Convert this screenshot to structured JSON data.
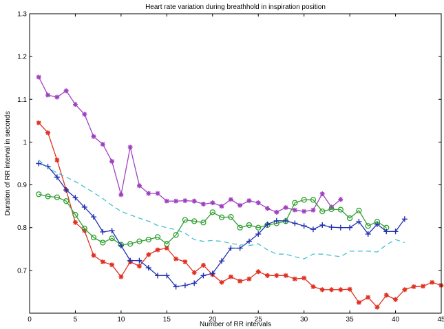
{
  "chart_data": {
    "type": "line",
    "title": "Heart rate variation during breathhold in inspiration position",
    "xlabel": "Number of RR intervals",
    "ylabel": "Duration of RR interval in seconds",
    "xlim": [
      0,
      45
    ],
    "ylim": [
      0.6,
      1.3
    ],
    "xticks": [
      0,
      5,
      10,
      15,
      20,
      25,
      30,
      35,
      40,
      45
    ],
    "yticks": [
      0.7,
      0.8,
      0.9,
      1.0,
      1.1,
      1.2,
      1.3
    ],
    "xtick_labels": [
      "0",
      "5",
      "10",
      "15",
      "20",
      "25",
      "30",
      "35",
      "40",
      "45"
    ],
    "ytick_labels": [
      "0.7",
      "0.8",
      "0.9",
      "1",
      "1.1",
      "1.2",
      "1.3"
    ],
    "grid": false,
    "legend": "none",
    "series": [
      {
        "color": "#a040c0",
        "marker": "star",
        "line_style": "solid",
        "x": [
          1,
          2,
          3,
          4,
          5,
          6,
          7,
          8,
          9,
          10,
          11,
          12,
          13,
          14,
          15,
          16,
          17,
          18,
          19,
          20,
          21,
          22,
          23,
          24,
          25,
          26,
          27,
          28,
          29,
          30,
          31,
          32,
          33,
          34
        ],
        "y": [
          1.152,
          1.11,
          1.105,
          1.12,
          1.088,
          1.065,
          1.013,
          0.995,
          0.955,
          0.877,
          0.988,
          0.898,
          0.88,
          0.88,
          0.862,
          0.862,
          0.863,
          0.862,
          0.855,
          0.858,
          0.85,
          0.866,
          0.852,
          0.863,
          0.858,
          0.845,
          0.836,
          0.847,
          0.841,
          0.838,
          0.841,
          0.879,
          0.848,
          0.866
        ]
      },
      {
        "color": "#e03020",
        "marker": "star",
        "line_style": "solid",
        "x": [
          1,
          2,
          3,
          4,
          5,
          6,
          7,
          8,
          9,
          10,
          11,
          12,
          13,
          14,
          15,
          16,
          17,
          18,
          19,
          20,
          21,
          22,
          23,
          24,
          25,
          26,
          27,
          28,
          29,
          30,
          31,
          32,
          33,
          34,
          35,
          36,
          37,
          38,
          39,
          40,
          41,
          42,
          43,
          44,
          45
        ],
        "y": [
          1.045,
          1.022,
          0.958,
          0.888,
          0.812,
          0.793,
          0.735,
          0.72,
          0.713,
          0.685,
          0.72,
          0.71,
          0.737,
          0.748,
          0.752,
          0.727,
          0.72,
          0.695,
          0.712,
          0.69,
          0.672,
          0.685,
          0.675,
          0.68,
          0.697,
          0.688,
          0.688,
          0.688,
          0.68,
          0.682,
          0.662,
          0.655,
          0.655,
          0.655,
          0.656,
          0.625,
          0.637,
          0.614,
          0.642,
          0.632,
          0.655,
          0.662,
          0.663,
          0.672,
          0.665
        ]
      },
      {
        "color": "#30a030",
        "marker": "circle",
        "line_style": "solid",
        "x": [
          1,
          2,
          3,
          4,
          5,
          6,
          7,
          8,
          9,
          10,
          11,
          12,
          13,
          14,
          15,
          16,
          17,
          18,
          19,
          20,
          21,
          22,
          23,
          24,
          25,
          26,
          27,
          28,
          29,
          30,
          31,
          32,
          33,
          34,
          35,
          36,
          37,
          38,
          39
        ],
        "y": [
          0.878,
          0.873,
          0.871,
          0.862,
          0.83,
          0.798,
          0.777,
          0.765,
          0.775,
          0.76,
          0.762,
          0.768,
          0.772,
          0.778,
          0.762,
          0.783,
          0.818,
          0.815,
          0.812,
          0.836,
          0.824,
          0.825,
          0.8,
          0.806,
          0.8,
          0.806,
          0.81,
          0.815,
          0.858,
          0.865,
          0.865,
          0.838,
          0.843,
          0.842,
          0.822,
          0.84,
          0.804,
          0.814,
          0.8
        ]
      },
      {
        "color": "#2030b0",
        "marker": "plus",
        "line_style": "solid",
        "x": [
          1,
          2,
          3,
          4,
          5,
          6,
          7,
          8,
          9,
          10,
          11,
          12,
          13,
          14,
          15,
          16,
          17,
          18,
          19,
          20,
          21,
          22,
          23,
          24,
          25,
          26,
          27,
          28,
          29,
          30,
          31,
          32,
          33,
          34,
          35,
          36,
          37,
          38,
          39,
          40,
          41
        ],
        "y": [
          0.95,
          0.943,
          0.918,
          0.888,
          0.87,
          0.848,
          0.825,
          0.79,
          0.793,
          0.758,
          0.723,
          0.723,
          0.706,
          0.688,
          0.688,
          0.662,
          0.665,
          0.67,
          0.688,
          0.693,
          0.722,
          0.752,
          0.752,
          0.768,
          0.785,
          0.808,
          0.816,
          0.816,
          0.81,
          0.804,
          0.796,
          0.806,
          0.801,
          0.8,
          0.8,
          0.814,
          0.785,
          0.808,
          0.791,
          0.791,
          0.82
        ]
      },
      {
        "color": "#40c0d0",
        "marker": "none",
        "line_style": "dashed",
        "x": [
          1,
          2,
          3,
          4,
          5,
          6,
          7,
          8,
          9,
          10,
          11,
          12,
          13,
          14,
          15,
          16,
          17,
          18,
          19,
          20,
          21,
          22,
          23,
          24,
          25,
          26,
          27,
          28,
          29,
          30,
          31,
          32,
          33,
          34,
          35,
          36,
          37,
          38,
          39,
          40,
          41
        ],
        "y": [
          0.958,
          0.94,
          0.928,
          0.918,
          0.908,
          0.895,
          0.882,
          0.868,
          0.852,
          0.838,
          0.83,
          0.822,
          0.815,
          0.805,
          0.8,
          0.795,
          0.787,
          0.772,
          0.768,
          0.77,
          0.768,
          0.763,
          0.76,
          0.758,
          0.762,
          0.748,
          0.738,
          0.738,
          0.732,
          0.727,
          0.738,
          0.738,
          0.735,
          0.732,
          0.745,
          0.745,
          0.745,
          0.743,
          0.76,
          0.772,
          0.765
        ]
      }
    ]
  }
}
